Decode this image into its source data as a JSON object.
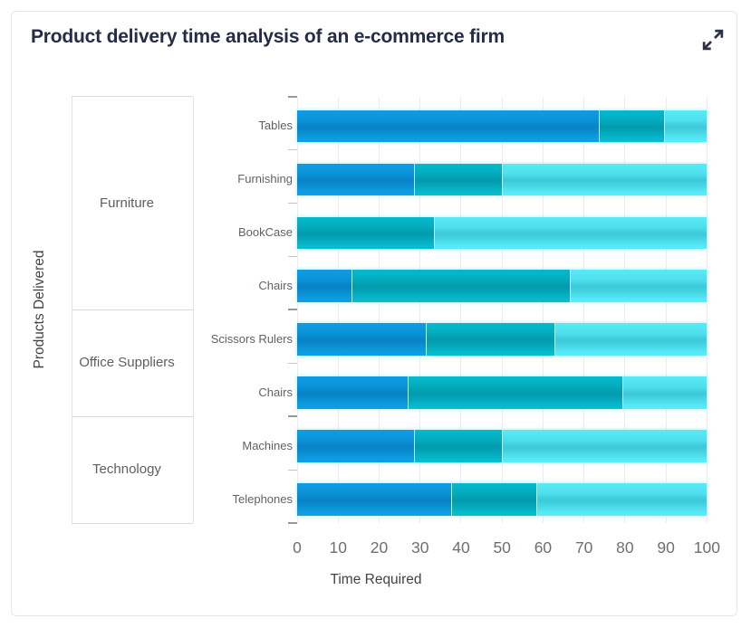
{
  "card": {
    "title": "Product delivery time analysis of an e-commerce firm",
    "expand_icon": "expand-arrows-icon",
    "border_color": "#e6e7e8",
    "title_color": "#252c45"
  },
  "chart_data": {
    "type": "bar",
    "orientation": "horizontal",
    "stacking": "percent",
    "title": "Product delivery time analysis of an e-commerce firm",
    "xlabel": "Time Required",
    "ylabel": "Products Delivered",
    "xlim": [
      0,
      100
    ],
    "x_ticks": [
      0,
      10,
      20,
      30,
      40,
      50,
      60,
      70,
      80,
      90,
      100
    ],
    "grid": "vertical-only",
    "legend": "none",
    "series_colors": [
      "#0a92da",
      "#01a9ba",
      "#4ce4f2"
    ],
    "groups": [
      {
        "label": "Furniture",
        "categories": [
          "Tables",
          "Furnishing",
          "BookCase",
          "Chairs"
        ]
      },
      {
        "label": "Office Suppliers",
        "categories": [
          "Scissors Rulers",
          "Chairs"
        ]
      },
      {
        "label": "Technology",
        "categories": [
          "Machines",
          "Telephones"
        ]
      }
    ],
    "rows": [
      {
        "group": "Furniture",
        "category": "Tables",
        "segments": [
          73.7,
          15.9,
          10.4
        ]
      },
      {
        "group": "Furniture",
        "category": "Furnishing",
        "segments": [
          28.6,
          21.4,
          50.0
        ]
      },
      {
        "group": "Furniture",
        "category": "BookCase",
        "segments": [
          0,
          33.3,
          66.7
        ]
      },
      {
        "group": "Furniture",
        "category": "Chairs",
        "segments": [
          13.3,
          53.3,
          33.4
        ]
      },
      {
        "group": "Office Suppliers",
        "category": "Scissors Rulers",
        "segments": [
          31.4,
          31.4,
          37.2
        ]
      },
      {
        "group": "Office Suppliers",
        "category": "Chairs",
        "segments": [
          27.0,
          52.4,
          20.6
        ]
      },
      {
        "group": "Technology",
        "category": "Machines",
        "segments": [
          28.6,
          21.4,
          50.0
        ]
      },
      {
        "group": "Technology",
        "category": "Telephones",
        "segments": [
          37.5,
          20.8,
          41.7
        ]
      }
    ]
  }
}
